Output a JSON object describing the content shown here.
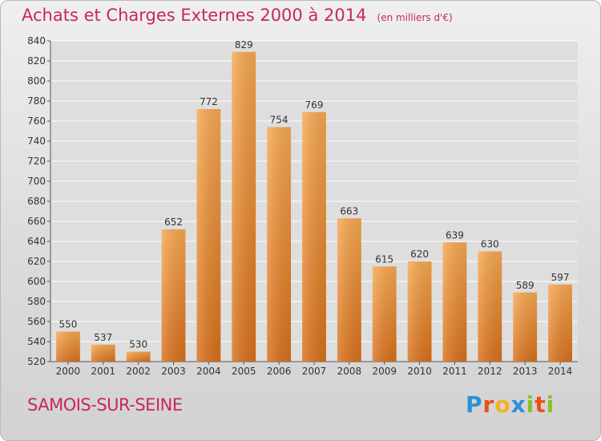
{
  "title": "Achats et Charges Externes 2000 à 2014",
  "unit": "(en milliers d'€)",
  "town": "SAMOIS-SUR-SEINE",
  "logo": {
    "text": "Proxiti",
    "letters": [
      {
        "ch": "P",
        "color": "#2e8fd6"
      },
      {
        "ch": "r",
        "color": "#e8521a"
      },
      {
        "ch": "o",
        "color": "#f2b51c"
      },
      {
        "ch": "x",
        "color": "#2e8fd6"
      },
      {
        "ch": "i",
        "color": "#8bbf2a"
      },
      {
        "ch": "t",
        "color": "#e8521a"
      },
      {
        "ch": "i",
        "color": "#8bbf2a"
      }
    ]
  },
  "colors": {
    "bar_top": "#f7a851",
    "bar_bottom": "#d8701a",
    "axis_text": "#333333",
    "title": "#c8285a"
  },
  "chart_data": {
    "type": "bar",
    "categories": [
      "2000",
      "2001",
      "2002",
      "2003",
      "2004",
      "2005",
      "2006",
      "2007",
      "2008",
      "2009",
      "2010",
      "2011",
      "2012",
      "2013",
      "2014"
    ],
    "values": [
      550,
      537,
      530,
      652,
      772,
      829,
      754,
      769,
      663,
      615,
      620,
      639,
      630,
      589,
      597
    ],
    "ylim": [
      520,
      840
    ],
    "yticks": [
      520,
      540,
      560,
      580,
      600,
      620,
      640,
      660,
      680,
      700,
      720,
      740,
      760,
      780,
      800,
      820,
      840
    ],
    "grid": true
  }
}
